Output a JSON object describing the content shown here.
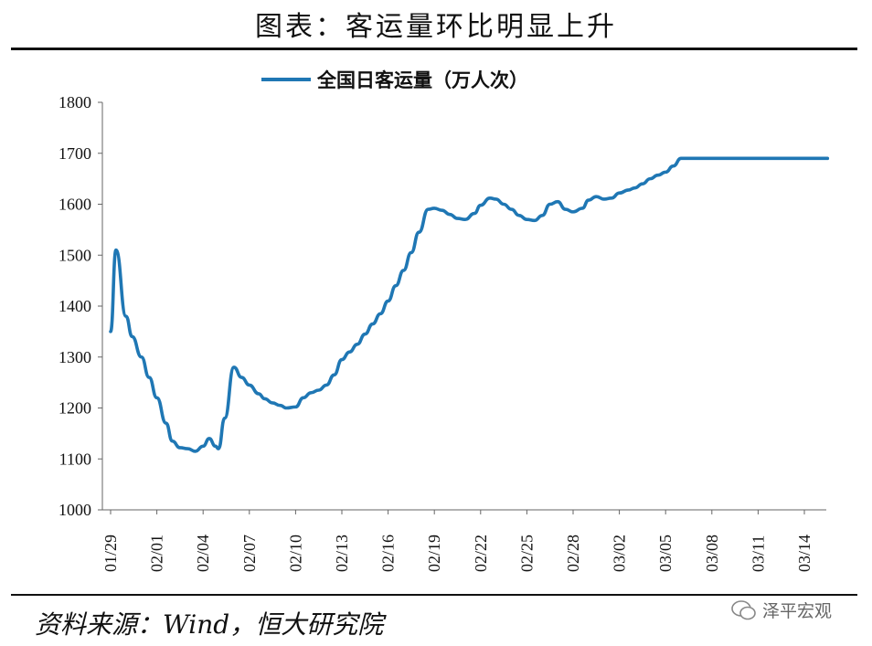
{
  "header": {
    "title": "图表：客运量环比明显上升"
  },
  "footer": {
    "source": "资料来源：Wind，恒大研究院",
    "watermark": "泽平宏观"
  },
  "chart_data": {
    "type": "line",
    "title": "图表：客运量环比明显上升",
    "xlabel": "",
    "ylabel": "",
    "ylim": [
      1000,
      1800
    ],
    "yticks": [
      1000,
      1100,
      1200,
      1300,
      1400,
      1500,
      1600,
      1700,
      1800
    ],
    "x_tick_labels": [
      "01/29",
      "02/01",
      "02/04",
      "02/07",
      "02/10",
      "02/13",
      "02/16",
      "02/19",
      "02/22",
      "02/25",
      "02/28",
      "03/02",
      "03/05",
      "03/08",
      "03/11",
      "03/14"
    ],
    "grid": false,
    "legend_position": "top-center",
    "colors": {
      "line": "#1f77b4"
    },
    "series": [
      {
        "name": "全国日客运量（万人次）",
        "x_index": [
          0,
          0.35,
          1,
          1.4,
          2,
          2.5,
          3,
          3.6,
          4,
          4.5,
          5,
          5.5,
          6,
          6.4,
          6.8,
          7,
          7.4,
          8,
          8.5,
          9,
          9.6,
          10,
          10.5,
          11,
          11.4,
          12,
          12.5,
          13,
          13.5,
          14,
          14.5,
          15,
          15.5,
          16,
          16.5,
          17,
          17.5,
          18,
          18.5,
          19,
          19.5,
          20,
          20.6,
          21,
          21.5,
          22,
          22.5,
          23,
          23.6,
          24,
          24.6,
          25,
          25.5,
          26,
          26.5,
          27,
          27.5,
          28,
          28.5,
          29,
          29.5,
          30,
          30.6,
          31,
          31.5,
          32,
          32.5,
          33,
          33.6,
          34,
          34.5,
          35,
          35.5,
          36,
          36.5,
          37,
          37.5,
          38,
          38.5,
          39,
          39.5,
          40,
          40.5,
          41,
          41.5,
          42,
          42.5,
          43,
          43.5,
          44,
          44.5,
          45,
          45.5,
          46,
          46.5
        ],
        "values": [
          1350,
          1510,
          1380,
          1340,
          1300,
          1260,
          1220,
          1170,
          1135,
          1122,
          1120,
          1115,
          1125,
          1140,
          1125,
          1120,
          1180,
          1280,
          1260,
          1245,
          1228,
          1218,
          1210,
          1205,
          1200,
          1202,
          1220,
          1230,
          1235,
          1245,
          1265,
          1295,
          1310,
          1325,
          1345,
          1365,
          1385,
          1410,
          1440,
          1470,
          1505,
          1545,
          1590,
          1592,
          1588,
          1580,
          1572,
          1570,
          1582,
          1598,
          1612,
          1610,
          1600,
          1590,
          1578,
          1570,
          1568,
          1578,
          1600,
          1605,
          1590,
          1585,
          1592,
          1608,
          1615,
          1610,
          1612,
          1622,
          1628,
          1632,
          1640,
          1650,
          1657,
          1663,
          1675,
          1690,
          1690,
          1690,
          1690,
          1690,
          1690,
          1690,
          1690,
          1690,
          1690,
          1690,
          1690,
          1690,
          1690,
          1690,
          1690,
          1690,
          1690,
          1690,
          1690
        ]
      }
    ]
  }
}
